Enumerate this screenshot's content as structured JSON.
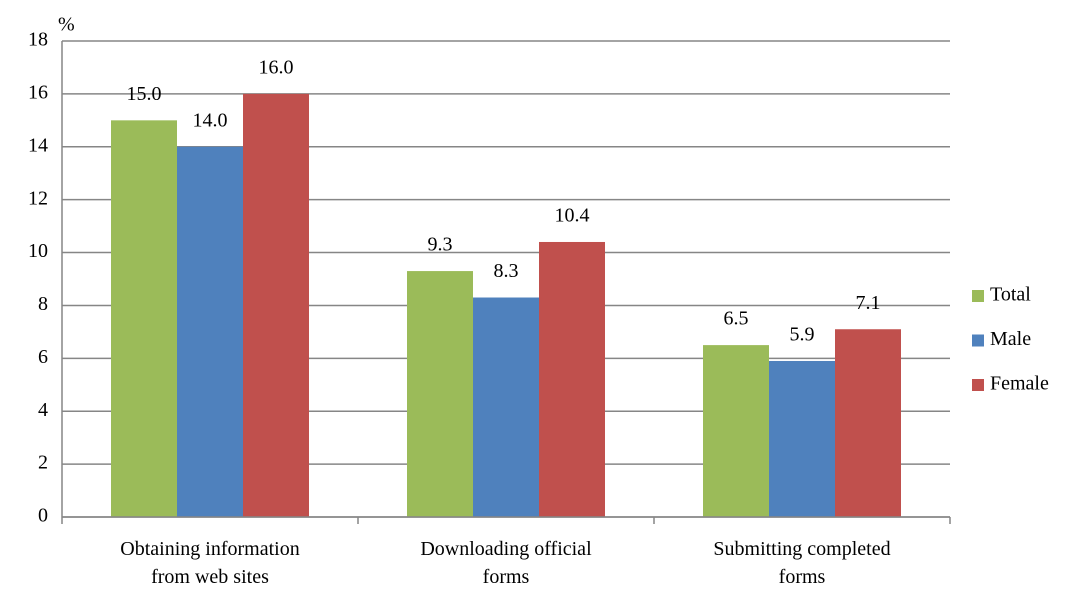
{
  "chart_data": {
    "type": "bar",
    "y_label": "%",
    "categories": [
      "Obtaining information from web sites",
      "Downloading official forms",
      "Submitting completed forms"
    ],
    "series": [
      {
        "name": "Total",
        "color": "#9bbb59",
        "values": [
          15.0,
          9.3,
          6.5
        ],
        "value_labels": [
          "15.0",
          "9.3",
          "6.5"
        ]
      },
      {
        "name": "Male",
        "color": "#4f81bd",
        "values": [
          14.0,
          8.3,
          5.9
        ],
        "value_labels": [
          "14.0",
          "8.3",
          "5.9"
        ]
      },
      {
        "name": "Female",
        "color": "#c0504d",
        "values": [
          16.0,
          10.4,
          7.1
        ],
        "value_labels": [
          "16.0",
          "10.4",
          "7.1"
        ]
      }
    ],
    "ylim": [
      0,
      18
    ],
    "yticks": [
      0,
      2,
      4,
      6,
      8,
      10,
      12,
      14,
      16,
      18
    ],
    "grid": true,
    "legend": "right"
  }
}
